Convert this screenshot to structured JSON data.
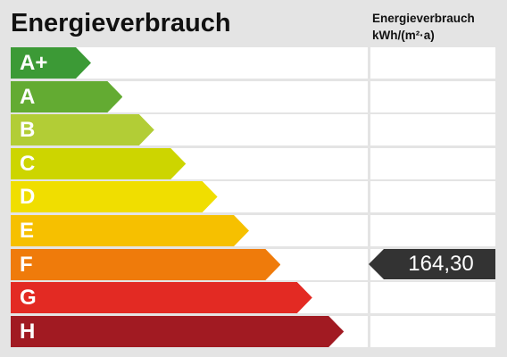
{
  "title": "Energieverbrauch",
  "column_header": {
    "line1": "Energieverbrauch",
    "line2": "kWh/(m²·a)"
  },
  "classes": [
    {
      "label": "A+",
      "color": "#3c9a36"
    },
    {
      "label": "A",
      "color": "#63ab32"
    },
    {
      "label": "B",
      "color": "#b2cd36"
    },
    {
      "label": "C",
      "color": "#cdd500"
    },
    {
      "label": "D",
      "color": "#f0de00"
    },
    {
      "label": "E",
      "color": "#f6c000"
    },
    {
      "label": "F",
      "color": "#ef7b0b"
    },
    {
      "label": "G",
      "color": "#e32a23"
    },
    {
      "label": "H",
      "color": "#a11a22"
    }
  ],
  "marker": {
    "value": "164,30",
    "class_label": "F",
    "color": "#333333"
  }
}
